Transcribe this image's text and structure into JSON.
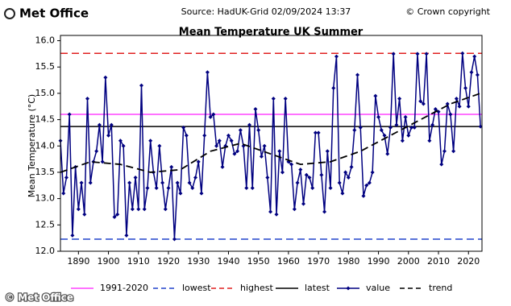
{
  "header": {
    "logo": "Met Office",
    "source": "Source: HadUK-Grid 02/09/2024 13:37",
    "copyright": "© Crown copyright"
  },
  "footer": "© Met Office",
  "chart_data": {
    "type": "line",
    "title": "Mean Temperature UK Summer",
    "y_label": "Mean Temperature (°C)",
    "xlim": [
      1884,
      2024.5
    ],
    "xticks": [
      1890,
      1900,
      1910,
      1920,
      1930,
      1940,
      1950,
      1960,
      1970,
      1980,
      1990,
      2000,
      2010,
      2020
    ],
    "ylim": [
      12,
      16.1
    ],
    "yticks": [
      {
        "value": 12,
        "label": "12.0"
      },
      12.5,
      {
        "value": 13,
        "label": "13.0"
      },
      13.5,
      {
        "value": 14,
        "label": "14.0"
      },
      14.5,
      {
        "value": 15,
        "label": "15.0"
      },
      15.5,
      {
        "value": 16,
        "label": "16.0"
      }
    ],
    "x": [
      1884,
      1885,
      1886,
      1887,
      1888,
      1889,
      1890,
      1891,
      1892,
      1893,
      1894,
      1895,
      1896,
      1897,
      1898,
      1899,
      1900,
      1901,
      1902,
      1903,
      1904,
      1905,
      1906,
      1907,
      1908,
      1909,
      1910,
      1911,
      1912,
      1913,
      1914,
      1915,
      1916,
      1917,
      1918,
      1919,
      1920,
      1921,
      1922,
      1923,
      1924,
      1925,
      1926,
      1927,
      1928,
      1929,
      1930,
      1931,
      1932,
      1933,
      1934,
      1935,
      1936,
      1937,
      1938,
      1939,
      1940,
      1941,
      1942,
      1943,
      1944,
      1945,
      1946,
      1947,
      1948,
      1949,
      1950,
      1951,
      1952,
      1953,
      1954,
      1955,
      1956,
      1957,
      1958,
      1959,
      1960,
      1961,
      1962,
      1963,
      1964,
      1965,
      1966,
      1967,
      1968,
      1969,
      1970,
      1971,
      1972,
      1973,
      1974,
      1975,
      1976,
      1977,
      1978,
      1979,
      1980,
      1981,
      1982,
      1983,
      1984,
      1985,
      1986,
      1987,
      1988,
      1989,
      1990,
      1991,
      1992,
      1993,
      1994,
      1995,
      1996,
      1997,
      1998,
      1999,
      2000,
      2001,
      2002,
      2003,
      2004,
      2005,
      2006,
      2007,
      2008,
      2009,
      2010,
      2011,
      2012,
      2013,
      2014,
      2015,
      2016,
      2017,
      2018,
      2019,
      2020,
      2021,
      2022,
      2023,
      2024
    ],
    "series": [
      {
        "name": "1991-2020",
        "color": "#ff44ff",
        "style": "solid",
        "value": 14.6
      },
      {
        "name": "lowest",
        "color": "#2244cc",
        "style": "dashed",
        "value": 12.23
      },
      {
        "name": "highest",
        "color": "#e02020",
        "style": "dashed",
        "value": 15.76
      },
      {
        "name": "latest",
        "color": "#000000",
        "style": "solid",
        "value": 14.37
      },
      {
        "name": "value",
        "color": "#000080",
        "style": "solid",
        "marker": true,
        "values": [
          14.1,
          13.1,
          13.4,
          14.6,
          12.3,
          13.6,
          12.8,
          13.3,
          12.7,
          14.9,
          13.3,
          13.7,
          13.9,
          14.4,
          13.7,
          15.3,
          14.2,
          14.4,
          12.65,
          12.7,
          14.1,
          14.0,
          12.3,
          13.3,
          12.8,
          13.4,
          12.8,
          15.15,
          12.8,
          13.2,
          14.1,
          13.5,
          13.2,
          14.0,
          13.3,
          12.8,
          13.2,
          13.6,
          12.23,
          13.3,
          13.1,
          14.35,
          14.2,
          13.3,
          13.2,
          13.4,
          13.7,
          13.1,
          14.2,
          15.4,
          14.55,
          14.6,
          14.0,
          14.1,
          13.6,
          14.0,
          14.2,
          14.1,
          13.85,
          13.9,
          14.3,
          14.0,
          13.2,
          14.4,
          13.2,
          14.7,
          14.3,
          13.8,
          14.0,
          13.4,
          12.75,
          14.9,
          12.7,
          13.9,
          13.5,
          14.9,
          13.7,
          13.65,
          12.8,
          13.3,
          13.55,
          12.9,
          13.45,
          13.4,
          13.2,
          14.25,
          14.25,
          13.45,
          12.75,
          13.9,
          13.2,
          15.1,
          15.7,
          13.3,
          13.1,
          13.5,
          13.4,
          13.6,
          14.3,
          15.35,
          14.35,
          13.05,
          13.25,
          13.3,
          13.5,
          14.95,
          14.55,
          14.3,
          14.2,
          13.85,
          14.35,
          15.75,
          14.4,
          14.9,
          14.1,
          14.55,
          14.2,
          14.35,
          14.35,
          15.75,
          14.85,
          14.8,
          15.75,
          14.1,
          14.4,
          14.7,
          14.65,
          13.65,
          13.9,
          14.8,
          14.6,
          13.9,
          14.9,
          14.75,
          15.76,
          15.1,
          14.75,
          15.4,
          15.7,
          15.35,
          14.37
        ]
      },
      {
        "name": "trend",
        "color": "#000000",
        "style": "dashed",
        "x": [
          1884,
          1894,
          1904,
          1914,
          1924,
          1934,
          1944,
          1954,
          1964,
          1974,
          1984,
          1994,
          2004,
          2014,
          2024
        ],
        "values": [
          13.5,
          13.7,
          13.65,
          13.5,
          13.55,
          13.9,
          14.05,
          13.85,
          13.65,
          13.7,
          13.9,
          14.2,
          14.5,
          14.8,
          15.0
        ]
      }
    ],
    "grid": false,
    "legend": "bottom"
  }
}
